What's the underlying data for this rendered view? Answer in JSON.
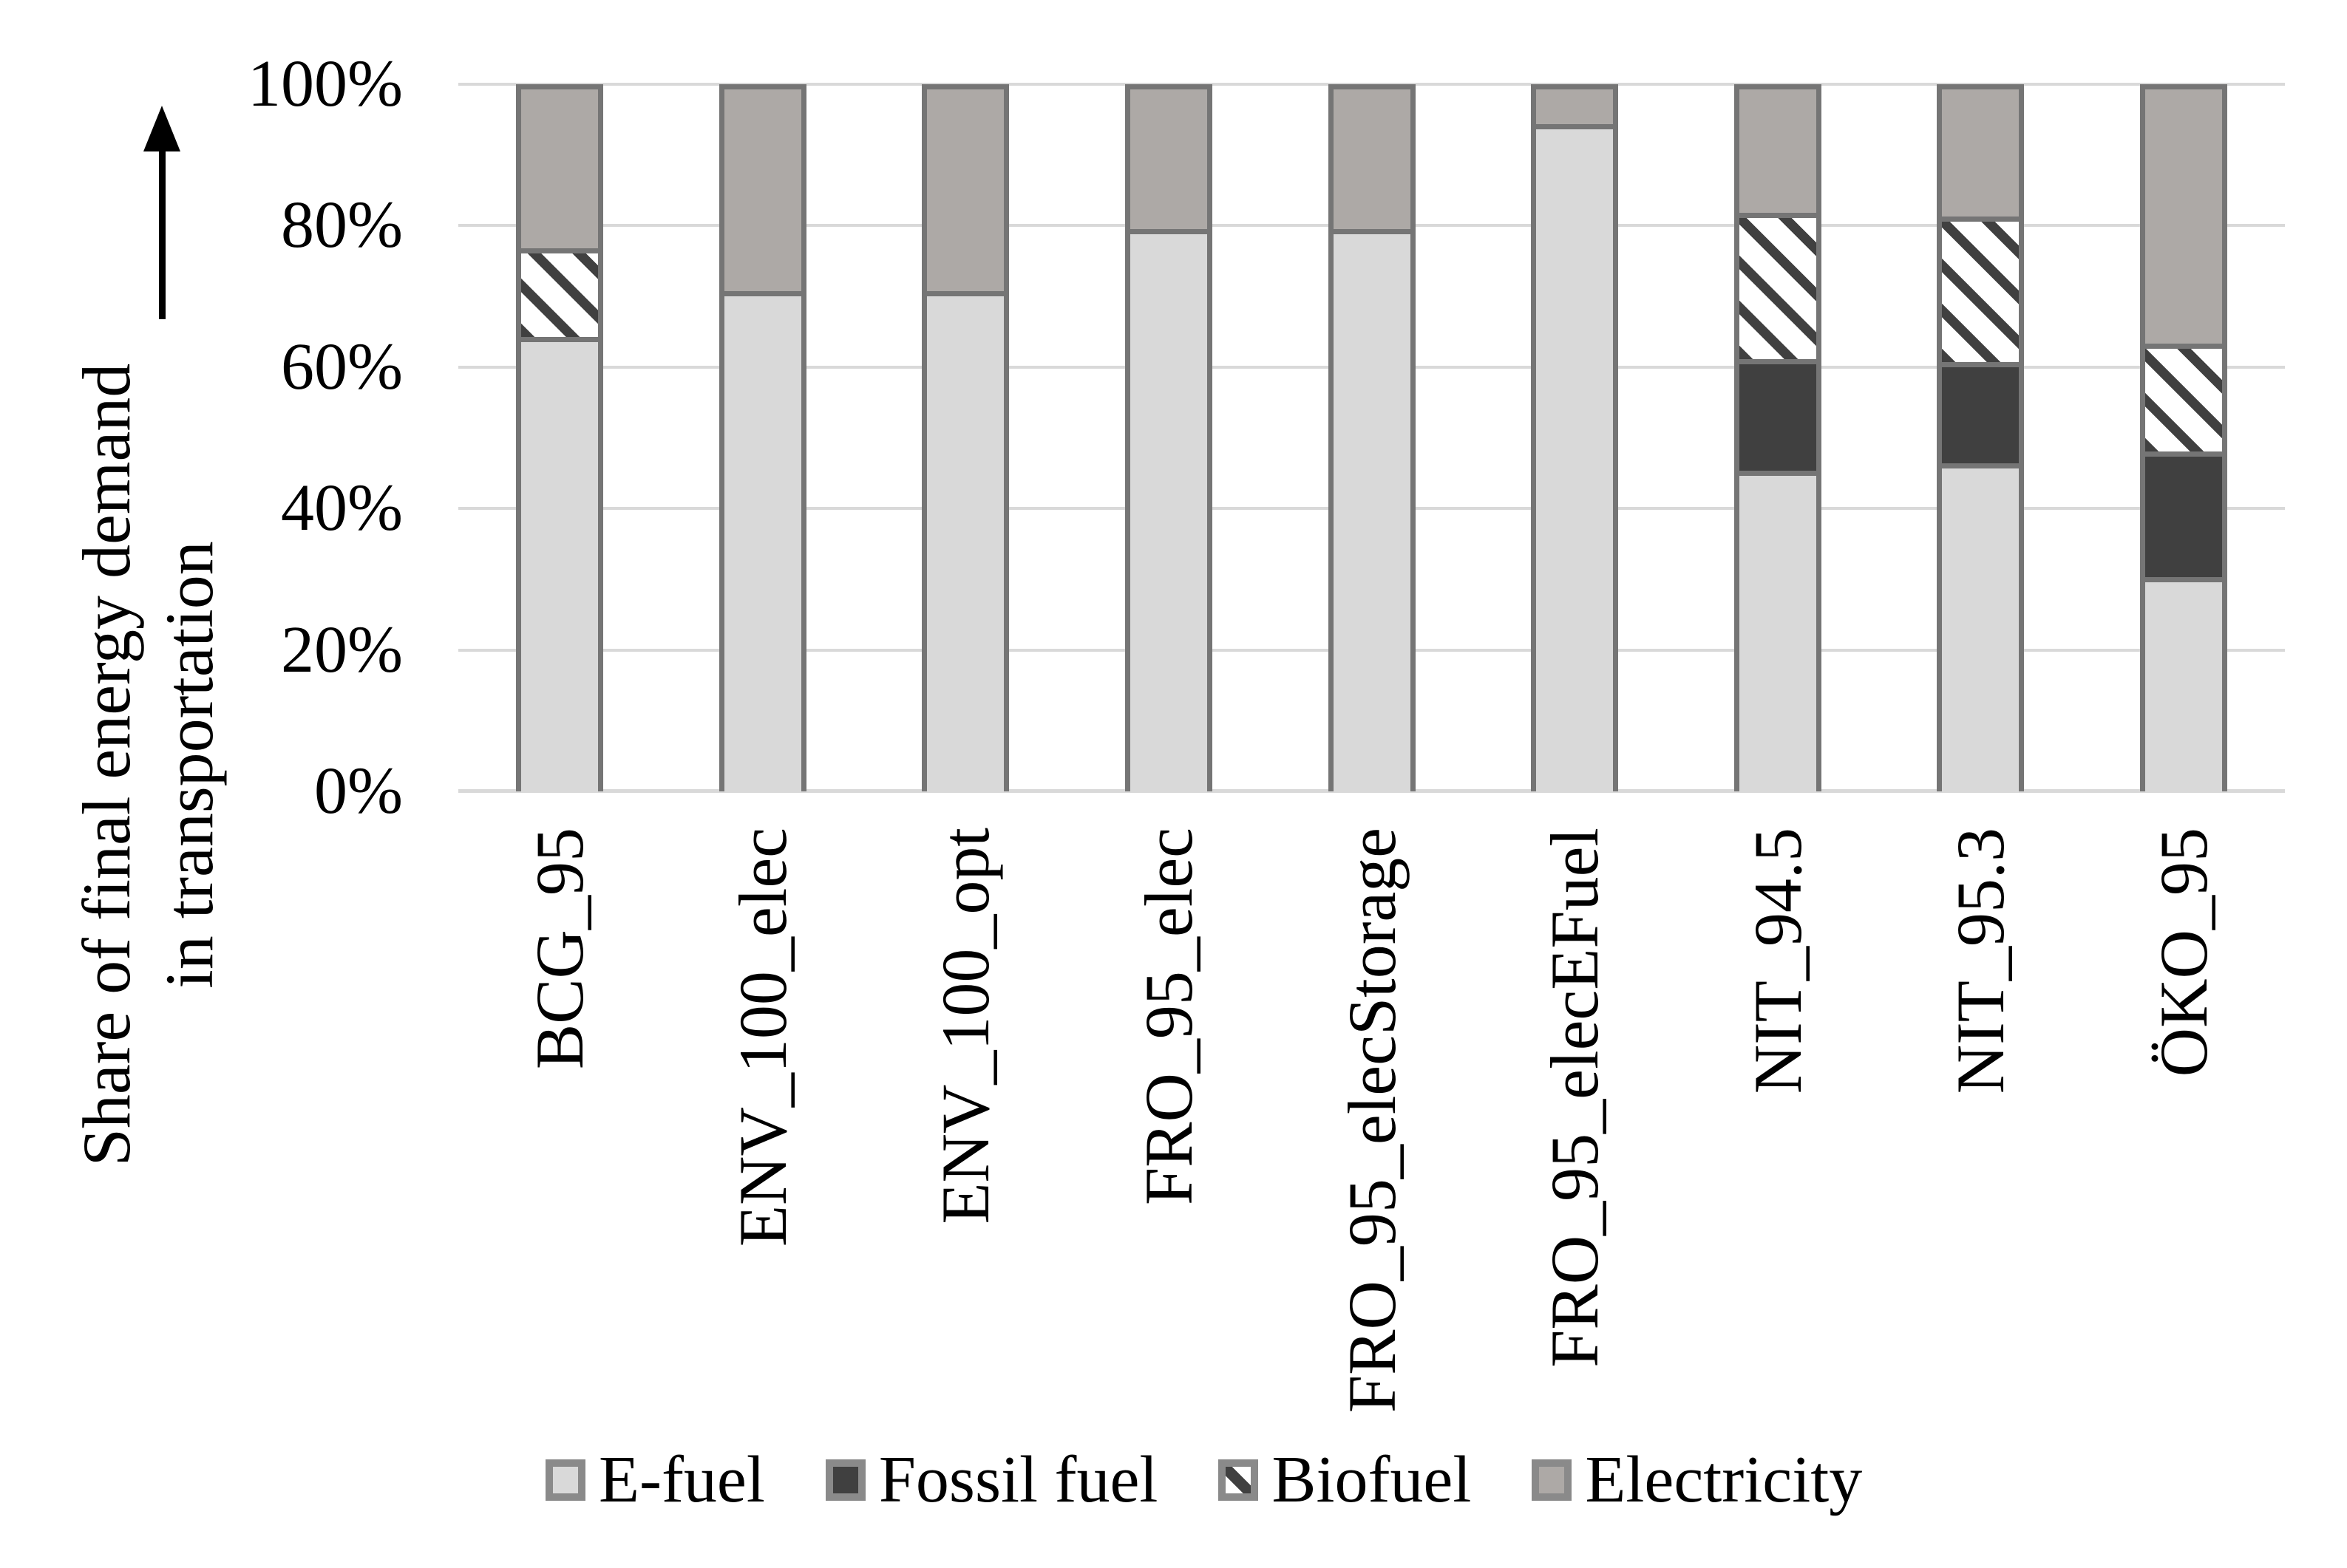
{
  "figure": {
    "y_axis_title_line1": "Share of final energy demand",
    "y_axis_title_line2": "in transportation"
  },
  "chart_data": {
    "type": "bar",
    "stacked": true,
    "unit": "percent",
    "title": "",
    "xlabel": "",
    "ylabel": "Share of final energy demand in transportation",
    "ylim": [
      0,
      100
    ],
    "yticks": [
      "0%",
      "20%",
      "40%",
      "60%",
      "80%",
      "100%"
    ],
    "grid": true,
    "legend_position": "bottom",
    "categories": [
      "BCG_95",
      "ENV_100_elec",
      "ENV_100_opt",
      "FRO_95_elec",
      "FRO_95_elecStorage",
      "FRO_95_elecEFuel",
      "NIT_94.5",
      "NIT_95.3",
      "ÖKO_95"
    ],
    "series": [
      {
        "name": "E-fuel",
        "values": [
          65,
          71,
          71,
          80,
          80,
          95,
          46,
          47,
          30.5
        ]
      },
      {
        "name": "Fossil fuel",
        "values": [
          0,
          0,
          0,
          0,
          0,
          0,
          15.5,
          14,
          17.5
        ]
      },
      {
        "name": "Biofuel",
        "values": [
          12,
          0,
          0,
          0,
          0,
          0,
          20.5,
          20.5,
          15
        ]
      },
      {
        "name": "Electricity",
        "values": [
          23,
          29,
          29,
          20,
          20,
          5,
          18,
          18.5,
          37
        ]
      }
    ]
  },
  "legend": {
    "items": [
      "E-fuel",
      "Fossil fuel",
      "Biofuel",
      "Electricity"
    ]
  },
  "icons": {
    "y_axis_arrow": "up-arrow"
  },
  "colors": {
    "efuel": "#D9D9D9",
    "fossil": "#404040",
    "electricity": "#ADA9A6",
    "biofuel_hatch": "#404040",
    "bar_border": "#757575",
    "swatch_border": "#8A8A8A",
    "gridline": "#D9D9D9"
  }
}
